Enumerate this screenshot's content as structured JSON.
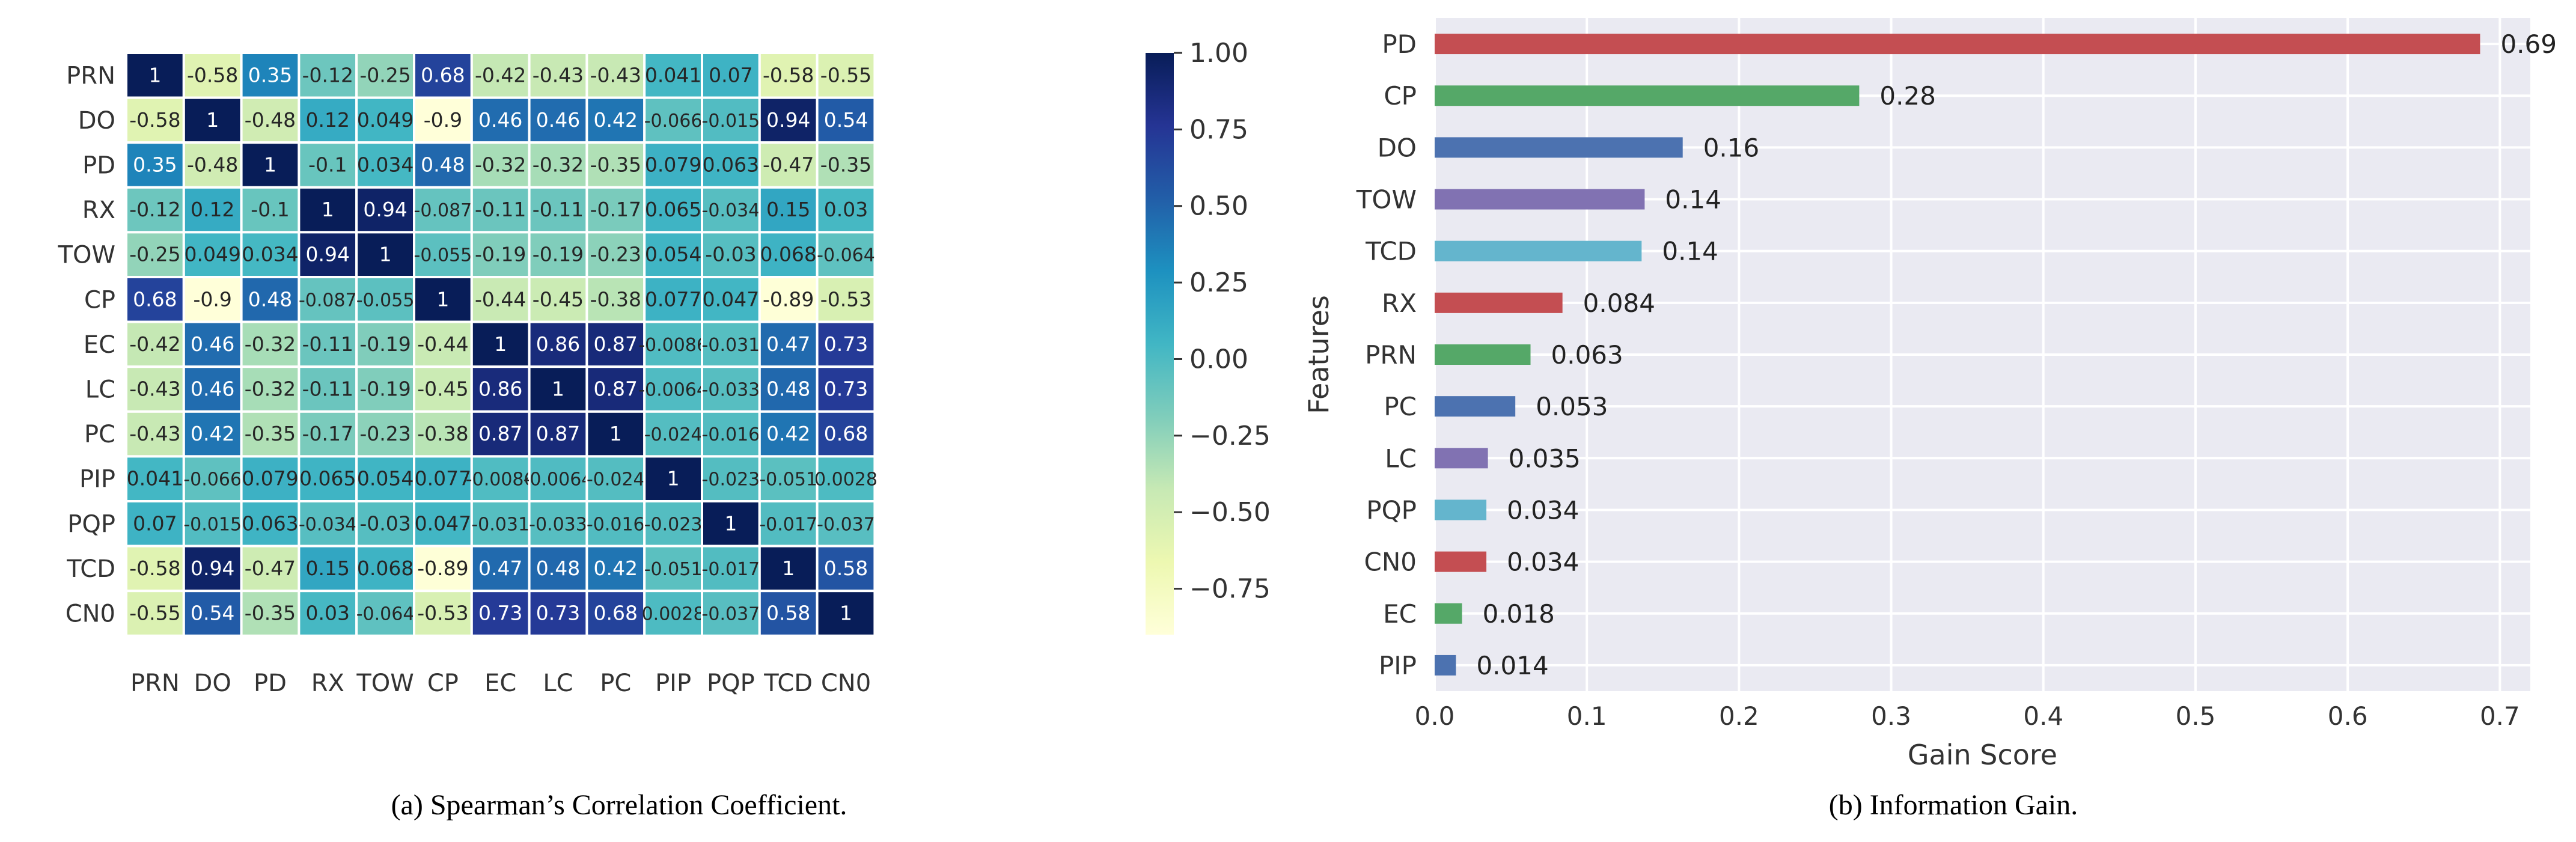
{
  "chart_data": [
    {
      "type": "heatmap",
      "caption": "(a) Spearman’s Correlation Coefficient.",
      "labels": [
        "PRN",
        "DO",
        "PD",
        "RX",
        "TOW",
        "CP",
        "EC",
        "LC",
        "PC",
        "PIP",
        "PQP",
        "TCD",
        "CN0"
      ],
      "cell_labels": [
        [
          "1",
          "-0.58",
          "0.35",
          "-0.12",
          "-0.25",
          "0.68",
          "-0.42",
          "-0.43",
          "-0.43",
          "0.041",
          "0.07",
          "-0.58",
          "-0.55"
        ],
        [
          "-0.58",
          "1",
          "-0.48",
          "0.12",
          "0.049",
          "-0.9",
          "0.46",
          "0.46",
          "0.42",
          "-0.066",
          "-0.015",
          "0.94",
          "0.54"
        ],
        [
          "0.35",
          "-0.48",
          "1",
          "-0.1",
          "0.034",
          "0.48",
          "-0.32",
          "-0.32",
          "-0.35",
          "0.079",
          "0.063",
          "-0.47",
          "-0.35"
        ],
        [
          "-0.12",
          "0.12",
          "-0.1",
          "1",
          "0.94",
          "-0.087",
          "-0.11",
          "-0.11",
          "-0.17",
          "0.065",
          "-0.034",
          "0.15",
          "0.03"
        ],
        [
          "-0.25",
          "0.049",
          "0.034",
          "0.94",
          "1",
          "-0.055",
          "-0.19",
          "-0.19",
          "-0.23",
          "0.054",
          "-0.03",
          "0.068",
          "-0.064"
        ],
        [
          "0.68",
          "-0.9",
          "0.48",
          "-0.087",
          "-0.055",
          "1",
          "-0.44",
          "-0.45",
          "-0.38",
          "0.077",
          "0.047",
          "-0.89",
          "-0.53"
        ],
        [
          "-0.42",
          "0.46",
          "-0.32",
          "-0.11",
          "-0.19",
          "-0.44",
          "1",
          "0.86",
          "0.87",
          "-0.0086",
          "-0.031",
          "0.47",
          "0.73"
        ],
        [
          "-0.43",
          "0.46",
          "-0.32",
          "-0.11",
          "-0.19",
          "-0.45",
          "0.86",
          "1",
          "0.87",
          "-0.0064",
          "-0.033",
          "0.48",
          "0.73"
        ],
        [
          "-0.43",
          "0.42",
          "-0.35",
          "-0.17",
          "-0.23",
          "-0.38",
          "0.87",
          "0.87",
          "1",
          "-0.024",
          "-0.016",
          "0.42",
          "0.68"
        ],
        [
          "0.041",
          "-0.066",
          "0.079",
          "0.065",
          "0.054",
          "0.077",
          "-0.0086",
          "-0.0064",
          "-0.024",
          "1",
          "-0.023",
          "-0.051",
          "0.0028"
        ],
        [
          "0.07",
          "-0.015",
          "0.063",
          "-0.034",
          "-0.03",
          "0.047",
          "-0.031",
          "-0.033",
          "-0.016",
          "-0.023",
          "1",
          "-0.017",
          "-0.037"
        ],
        [
          "-0.58",
          "0.94",
          "-0.47",
          "0.15",
          "0.068",
          "-0.89",
          "0.47",
          "0.48",
          "0.42",
          "-0.051",
          "-0.017",
          "1",
          "0.58"
        ],
        [
          "-0.55",
          "0.54",
          "-0.35",
          "0.03",
          "-0.064",
          "-0.53",
          "0.73",
          "0.73",
          "0.68",
          "0.0028",
          "-0.037",
          "0.58",
          "1"
        ]
      ],
      "colorbar": {
        "range": [
          -0.9,
          1.0
        ],
        "ticks": [
          1.0,
          0.75,
          0.5,
          0.25,
          0.0,
          -0.25,
          -0.5,
          -0.75
        ],
        "tick_labels": [
          "1.00",
          "0.75",
          "0.50",
          "0.25",
          "0.00",
          "−0.25",
          "−0.50",
          "−0.75"
        ],
        "colormap": "YlGnBu",
        "colors": [
          "#ffffd9",
          "#edf8b1",
          "#c7e9b4",
          "#7fcdbb",
          "#41b6c4",
          "#1d91c0",
          "#225ea8",
          "#253494",
          "#081d58"
        ]
      }
    },
    {
      "type": "bar",
      "orientation": "horizontal",
      "caption": "(b) Information Gain.",
      "xlabel": "Gain Score",
      "ylabel": "Features",
      "categories": [
        "PD",
        "CP",
        "DO",
        "TOW",
        "TCD",
        "RX",
        "PRN",
        "PC",
        "LC",
        "PQP",
        "CN0",
        "EC",
        "PIP"
      ],
      "values": [
        0.69,
        0.28,
        0.16,
        0.14,
        0.14,
        0.084,
        0.063,
        0.053,
        0.035,
        0.034,
        0.034,
        0.018,
        0.014
      ],
      "value_labels": [
        "0.69",
        "0.28",
        "0.16",
        "0.14",
        "0.14",
        "0.084",
        "0.063",
        "0.053",
        "0.035",
        "0.034",
        "0.034",
        "0.018",
        "0.014"
      ],
      "plot_values": [
        0.687,
        0.279,
        0.163,
        0.138,
        0.136,
        0.084,
        0.063,
        0.053,
        0.035,
        0.034,
        0.034,
        0.018,
        0.014
      ],
      "xlim": [
        0,
        0.72
      ],
      "xticks": [
        0.0,
        0.1,
        0.2,
        0.3,
        0.4,
        0.5,
        0.6,
        0.7
      ],
      "xtick_labels": [
        "0.0",
        "0.1",
        "0.2",
        "0.3",
        "0.4",
        "0.5",
        "0.6",
        "0.7"
      ],
      "bar_colors": [
        "#c44e52",
        "#55a868",
        "#4c72b0",
        "#8172b2",
        "#64b5cd",
        "#c44e52",
        "#55a868",
        "#4c72b0",
        "#8172b2",
        "#64b5cd",
        "#c44e52",
        "#55a868",
        "#4c72b0"
      ],
      "background": "#eaeaf2",
      "grid": true
    }
  ]
}
